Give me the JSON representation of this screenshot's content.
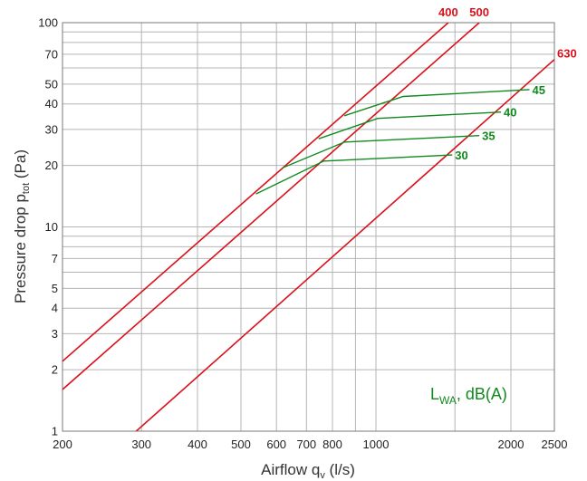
{
  "chart_data": {
    "type": "line",
    "title": "",
    "xlabel": "Airflow q",
    "xlabel_sub": "v",
    "xlabel_unit": " (l/s)",
    "ylabel": "Pressure drop p",
    "ylabel_sub": "tot",
    "ylabel_unit": " (Pa)",
    "x_scale": "log",
    "y_scale": "log",
    "xlim": [
      200,
      2500
    ],
    "ylim": [
      1,
      100
    ],
    "grid": true,
    "x_ticks": [
      200,
      300,
      400,
      500,
      600,
      700,
      800,
      1000,
      2000,
      2500
    ],
    "x_tick_labels": [
      "200",
      "300",
      "400",
      "500",
      "600",
      "700",
      "800",
      "1000",
      "2000",
      "2500"
    ],
    "x_minor_grid": [
      900,
      1500
    ],
    "y_ticks": [
      1,
      2,
      3,
      4,
      5,
      7,
      10,
      20,
      30,
      40,
      50,
      70,
      100
    ],
    "y_tick_labels": [
      "1",
      "2",
      "3",
      "4",
      "5",
      "7",
      "10",
      "20",
      "30",
      "40",
      "50",
      "70",
      "100"
    ],
    "y_minor_grid": [
      6,
      8,
      9,
      60,
      80,
      90
    ],
    "series": [
      {
        "name": "400",
        "color": "#d9111b",
        "points": [
          [
            200,
            2.2
          ],
          [
            1450,
            100
          ]
        ]
      },
      {
        "name": "500",
        "color": "#d9111b",
        "points": [
          [
            200,
            1.6
          ],
          [
            1700,
            100
          ]
        ]
      },
      {
        "name": "630",
        "color": "#d9111b",
        "points": [
          [
            292,
            1
          ],
          [
            2500,
            66
          ]
        ]
      }
    ],
    "noise_curves": [
      {
        "name": "30",
        "color": "#108a1e",
        "points": [
          [
            540,
            14.5
          ],
          [
            765,
            21
          ],
          [
            1480,
            22.5
          ]
        ]
      },
      {
        "name": "35",
        "color": "#108a1e",
        "points": [
          [
            620,
            19.5
          ],
          [
            850,
            26
          ],
          [
            1700,
            28
          ]
        ]
      },
      {
        "name": "40",
        "color": "#108a1e",
        "points": [
          [
            745,
            27
          ],
          [
            1010,
            34
          ],
          [
            1900,
            36.5
          ]
        ]
      },
      {
        "name": "45",
        "color": "#108a1e",
        "points": [
          [
            850,
            35
          ],
          [
            1150,
            43.5
          ],
          [
            2200,
            47
          ]
        ]
      }
    ],
    "annotation_main": "L",
    "annotation_sub": "WA",
    "annotation_rest": ", dB(A)"
  }
}
